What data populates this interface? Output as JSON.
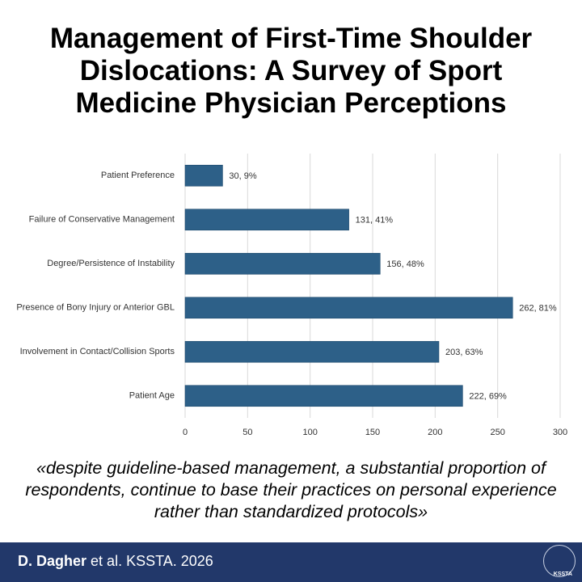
{
  "chart_data": {
    "type": "hbar",
    "title": "Management of First-Time Shoulder Dislocations: A Survey of Sport Medicine Physician Perceptions",
    "categories": [
      "Patient Preference",
      "Failure of Conservative Management",
      "Degree/Persistence of Instability",
      "Presence of Bony Injury or Anterior GBL",
      "Involvement in Contact/Collision Sports",
      "Patient Age"
    ],
    "values": [
      30,
      131,
      156,
      262,
      203,
      222
    ],
    "value_labels": [
      "30, 9%",
      "131, 41%",
      "156, 48%",
      "262, 81%",
      "203, 63%",
      "222, 69%"
    ],
    "color": "#2d6088",
    "xlim": [
      0,
      300
    ],
    "xticks": [
      0,
      50,
      100,
      150,
      200,
      250,
      300
    ],
    "grid": true
  },
  "quote": "«despite guideline-based management, a substantial proportion of respondents, continue to base their practices on personal experience rather than standardized protocols»",
  "footer": {
    "author": "D. Dagher",
    "citation": "et al. KSSTA. 2026",
    "logo_text": "KSSTA"
  }
}
